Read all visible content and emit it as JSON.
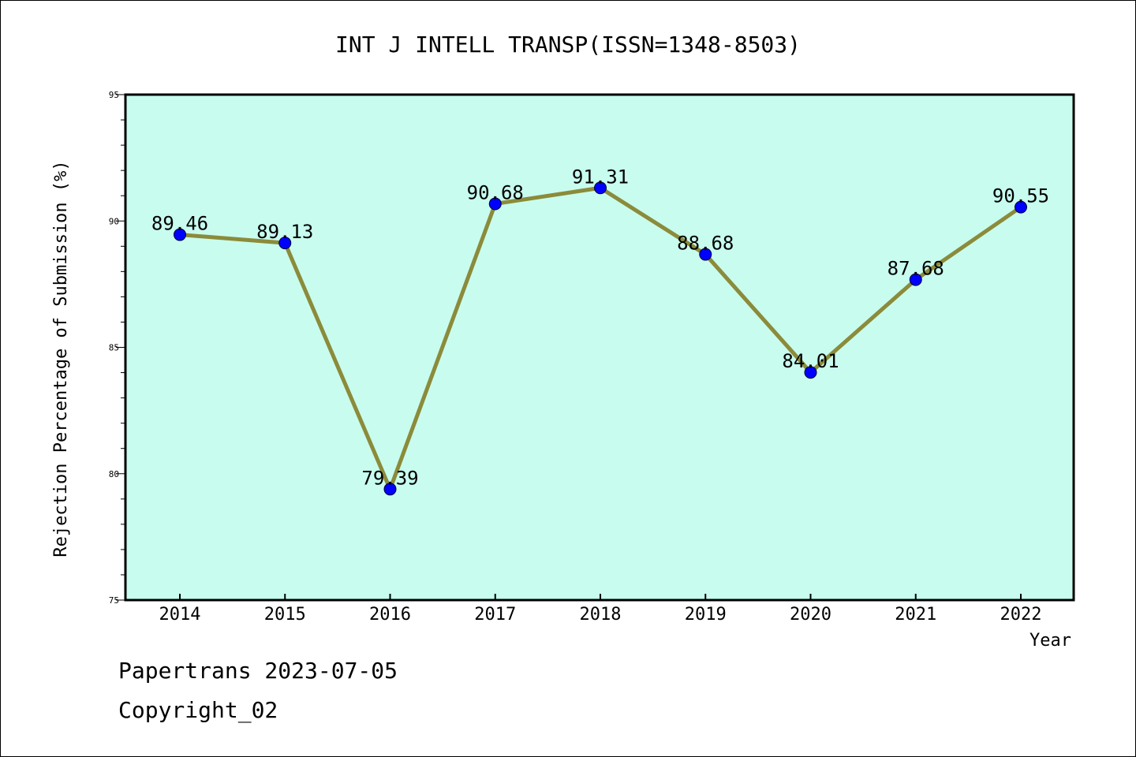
{
  "chart_data": {
    "type": "line",
    "title": "INT J INTELL TRANSP(ISSN=1348-8503)",
    "xlabel": "Year",
    "ylabel": "Rejection Percentage of Submission (%)",
    "categories": [
      "2014",
      "2015",
      "2016",
      "2017",
      "2018",
      "2019",
      "2020",
      "2021",
      "2022"
    ],
    "values": [
      89.46,
      89.13,
      79.39,
      90.68,
      91.31,
      88.68,
      84.01,
      87.68,
      90.55
    ],
    "data_labels": [
      "89.46",
      "89.13",
      "79.39",
      "90.68",
      "91.31",
      "88.68",
      "84.01",
      "87.68",
      "90.55"
    ],
    "ylim": [
      75,
      95
    ],
    "yticks": [
      75,
      80,
      85,
      90,
      95
    ],
    "grid": false,
    "colors": {
      "plot_background": "#c8fcef",
      "line": "#8b8b3a",
      "marker": "#0000ff"
    }
  },
  "footer": {
    "line1": "Papertrans 2023-07-05",
    "line2": "Copyright_02"
  }
}
